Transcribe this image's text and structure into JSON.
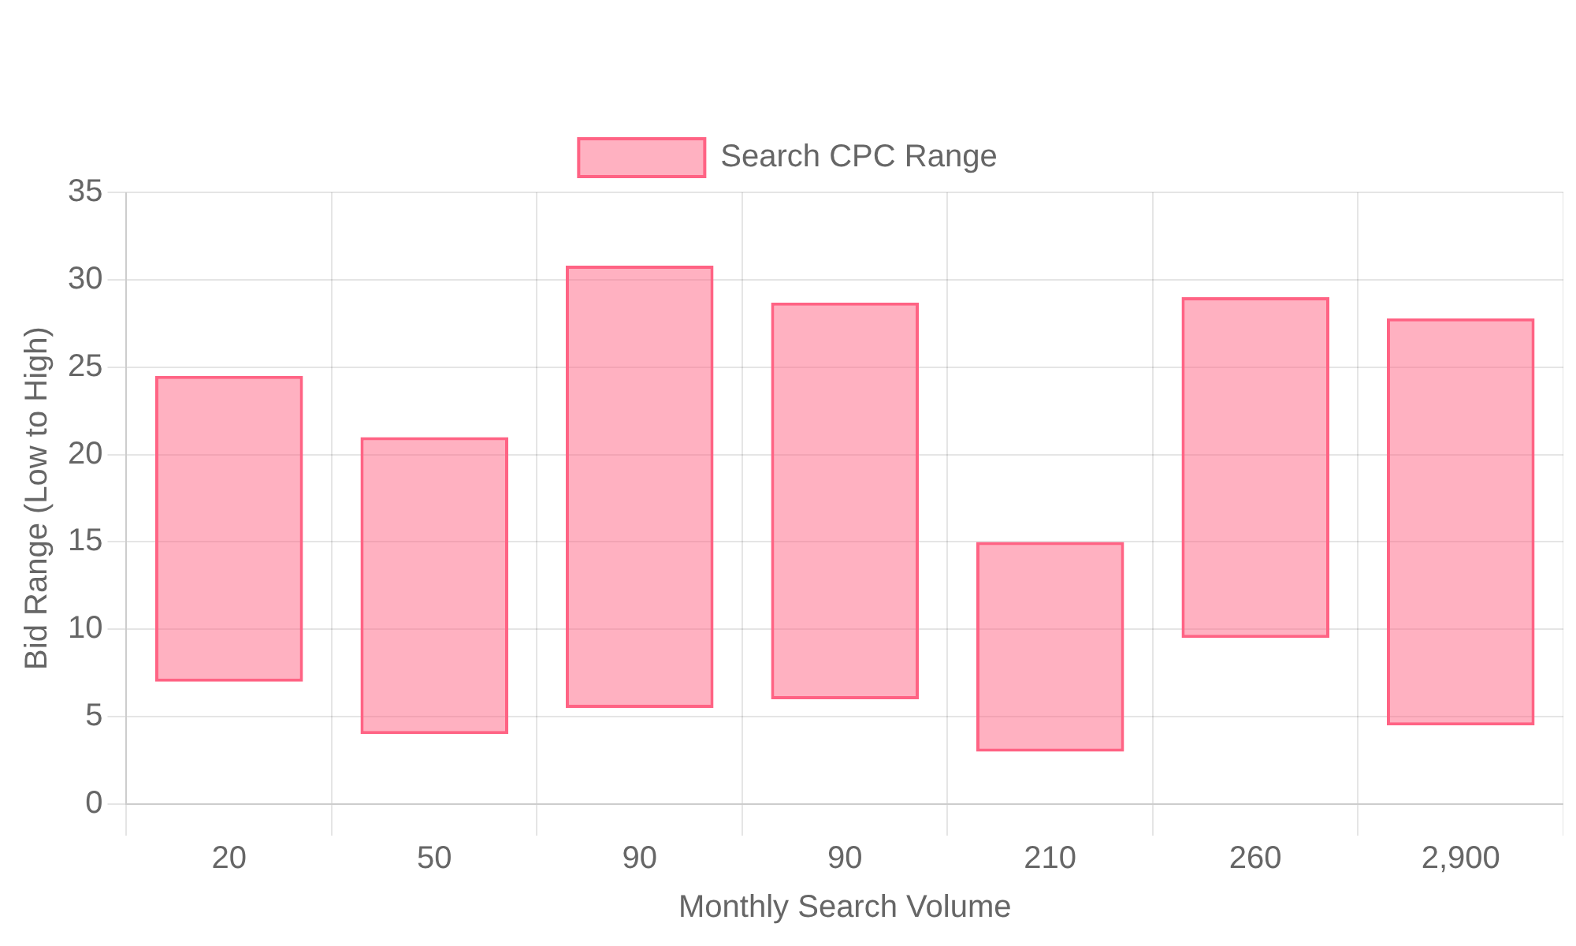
{
  "chart_data": {
    "type": "bar",
    "xlabel": "Monthly Search Volume",
    "ylabel": "Bid Range (Low to High)",
    "categories": [
      "20",
      "50",
      "90",
      "90",
      "210",
      "260",
      "2,900"
    ],
    "series": [
      {
        "name": "Search CPC Range",
        "color": "#ff6384",
        "values": [
          17.5,
          17,
          25.3,
          22.7,
          12,
          19.5,
          23.3
        ],
        "base": [
          7,
          4,
          5.5,
          6,
          3,
          9.5,
          4.5
        ]
      }
    ],
    "ylim": [
      0,
      35
    ],
    "yticks": [
      0,
      5,
      10,
      15,
      20,
      25,
      30,
      35
    ],
    "grid": true,
    "legend": "top"
  }
}
